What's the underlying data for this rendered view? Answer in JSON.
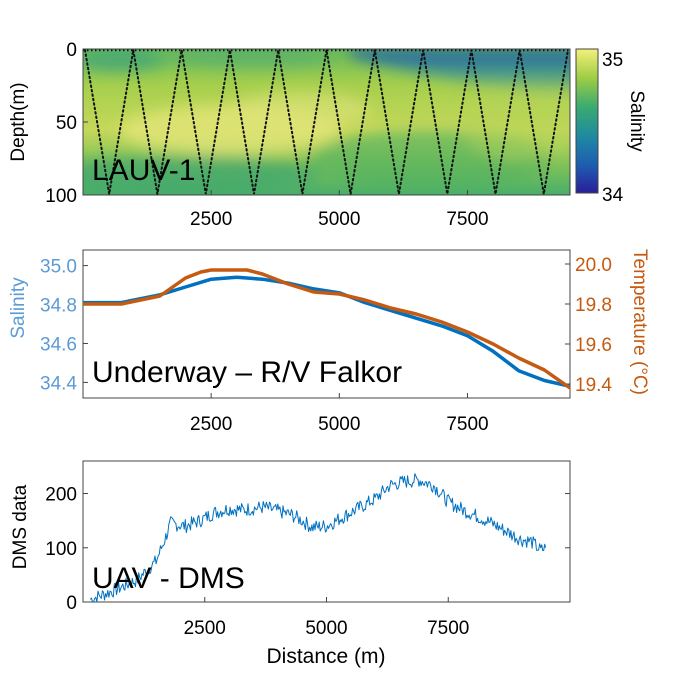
{
  "chart_data": [
    {
      "type": "heatmap",
      "panel_label": "LAUV-1",
      "ylabel": "Depth(m)",
      "yticks": [
        "0",
        "50",
        "100"
      ],
      "ylim": [
        0,
        100
      ],
      "y_reversed": true,
      "xticks": [
        "2500",
        "5000",
        "7500"
      ],
      "xlim": [
        0,
        9500
      ],
      "colorbar": {
        "label": "Salinity",
        "min_label": "34",
        "max_label": "35",
        "range": [
          34,
          35
        ],
        "colors": [
          "#2a1e9a",
          "#1d5fb0",
          "#1f8ba0",
          "#3aab6f",
          "#9fcd45",
          "#f4f07a"
        ]
      },
      "surface_low_salinity_band": {
        "x_from": 5200,
        "x_to": 9500,
        "depth_to": 25
      },
      "vehicle_track_dives": 20,
      "track_style": "dotted black"
    },
    {
      "type": "line",
      "panel_label": "Underway – R/V Falkor",
      "xticks": [
        "2500",
        "5000",
        "7500"
      ],
      "xlim": [
        0,
        9500
      ],
      "left_axis": {
        "label": "Salinity",
        "ticks": [
          "35.0",
          "34.8",
          "34.6",
          "34.4"
        ],
        "ylim": [
          34.32,
          35.08
        ],
        "color": "#5b9bd5"
      },
      "right_axis": {
        "label": "Temperature (°C)",
        "ticks": [
          "20.0",
          "19.8",
          "19.6",
          "19.4"
        ],
        "ylim": [
          19.33,
          20.07
        ],
        "color": "#c55a11"
      },
      "series": [
        {
          "axis": "left",
          "color": "#0070c0",
          "x": [
            0,
            750,
            1500,
            2000,
            2500,
            3000,
            3500,
            4000,
            4500,
            5000,
            5500,
            6000,
            6500,
            7000,
            7500,
            8000,
            8500,
            9000,
            9500
          ],
          "values": [
            34.81,
            34.81,
            34.85,
            34.89,
            34.93,
            34.94,
            34.93,
            34.91,
            34.88,
            34.86,
            34.81,
            34.77,
            34.73,
            34.69,
            34.64,
            34.56,
            34.46,
            34.41,
            34.38
          ]
        },
        {
          "axis": "right",
          "color": "#c55a11",
          "x": [
            0,
            750,
            1500,
            2000,
            2300,
            2500,
            3000,
            3200,
            3500,
            4000,
            4500,
            5000,
            5500,
            6000,
            6500,
            7000,
            7500,
            8000,
            8500,
            9000,
            9500
          ],
          "values": [
            19.8,
            19.8,
            19.84,
            19.93,
            19.96,
            19.97,
            19.97,
            19.97,
            19.95,
            19.9,
            19.86,
            19.85,
            19.82,
            19.78,
            19.75,
            19.71,
            19.66,
            19.6,
            19.53,
            19.47,
            19.38
          ]
        }
      ]
    },
    {
      "type": "line",
      "panel_label": "UAV - DMS",
      "ylabel": "DMS data",
      "yticks": [
        "0",
        "100",
        "200"
      ],
      "ylim": [
        0,
        260
      ],
      "xticks": [
        "2500",
        "5000",
        "7500"
      ],
      "xlim": [
        0,
        10000
      ],
      "xlabel": "Distance (m)",
      "series": [
        {
          "color": "#0070c0",
          "noisy": true,
          "x": [
            150,
            600,
            1100,
            1500,
            1700,
            1800,
            2100,
            2400,
            2700,
            3000,
            3300,
            3700,
            4000,
            4300,
            4500,
            4700,
            5000,
            5300,
            5600,
            6000,
            6300,
            6600,
            6900,
            7200,
            7500,
            7800,
            8100,
            8400,
            8700,
            9000,
            9200,
            9400,
            9500
          ],
          "values": [
            5,
            20,
            40,
            75,
            120,
            145,
            140,
            150,
            165,
            172,
            170,
            175,
            168,
            160,
            150,
            138,
            140,
            155,
            170,
            190,
            215,
            222,
            225,
            215,
            185,
            170,
            158,
            145,
            130,
            115,
            112,
            95,
            100
          ]
        }
      ]
    }
  ]
}
